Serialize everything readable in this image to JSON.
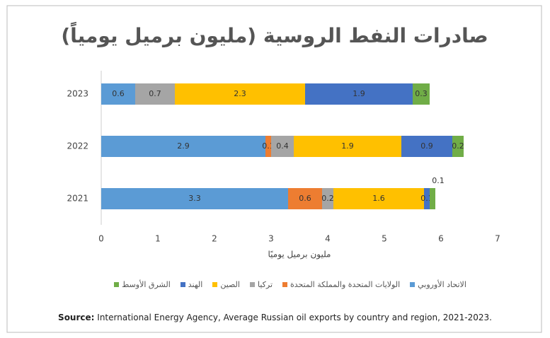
{
  "chart_data": {
    "type": "stacked_hbar",
    "title": "صادرات النفط الروسية (مليون برميل يومياً)",
    "x_label": "مليون برميل يوميًا",
    "categories": [
      "2023",
      "2022",
      "2021"
    ],
    "series": [
      {
        "name": "الاتحاد الأوروبي",
        "color": "#5b9bd5",
        "values": [
          0.6,
          2.9,
          3.3
        ]
      },
      {
        "name": "الولايات المتحدة والمملكة المتحدة",
        "color": "#ed7d31",
        "values": [
          null,
          0.1,
          0.6
        ]
      },
      {
        "name": "تركيا",
        "color": "#a5a5a5",
        "values": [
          0.7,
          0.4,
          0.2
        ]
      },
      {
        "name": "الصين",
        "color": "#ffc000",
        "values": [
          2.3,
          1.9,
          1.6
        ]
      },
      {
        "name": "الهند",
        "color": "#4472c4",
        "values": [
          1.9,
          0.9,
          0.1
        ]
      },
      {
        "name": "الشرق الأوسط",
        "color": "#70ad47",
        "values": [
          0.3,
          0.2,
          0.1
        ]
      }
    ],
    "xlim": [
      0,
      7
    ],
    "xticks": [
      0,
      1,
      2,
      3,
      4,
      5,
      6,
      7
    ],
    "source_label": "Source:",
    "source": "International Energy Agency, Average Russian oil exports by country and region, 2021-2023."
  }
}
